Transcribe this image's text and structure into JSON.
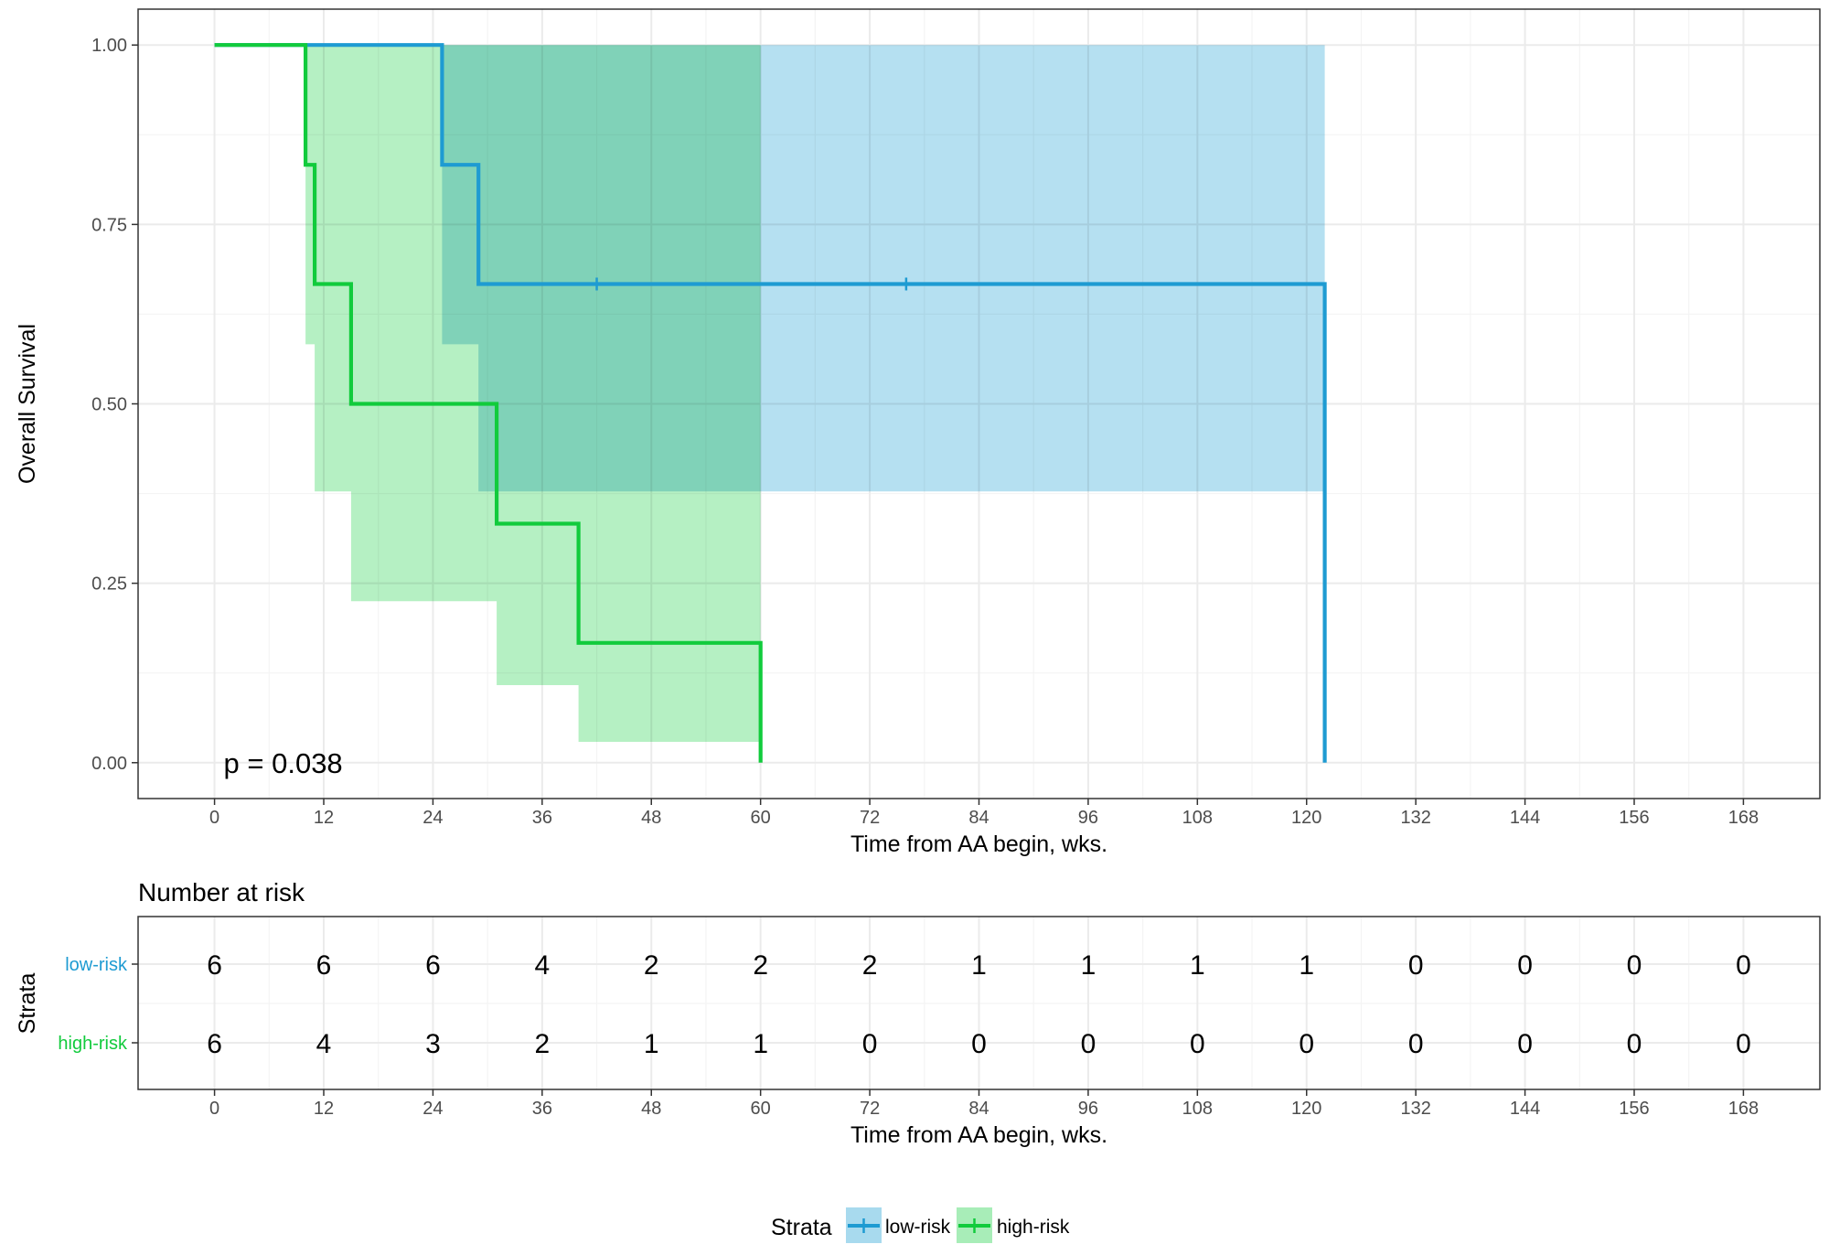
{
  "colors": {
    "low_risk": "#1E9BD2",
    "high_risk": "#11CB3C",
    "low_risk_band": "#A8DAEE",
    "high_risk_band": "#A8EDB8",
    "overlap_band": "#7DD9B5",
    "grid_major": "#EBEBEB",
    "grid_minor": "#F4F4F4",
    "axis_text": "#333333"
  },
  "chart_data": [
    {
      "type": "line",
      "subtype": "kaplan-meier",
      "ylabel": "Overall Survival",
      "xlabel": "Time from AA begin, wks.",
      "xlim": [
        -8.4,
        176.4
      ],
      "ylim": [
        -0.05,
        1.05
      ],
      "x_ticks": [
        0,
        12,
        24,
        36,
        48,
        60,
        72,
        84,
        96,
        108,
        120,
        132,
        144,
        156,
        168
      ],
      "x_tick_labels": [
        "0",
        "12",
        "24",
        "36",
        "48",
        "60",
        "72",
        "84",
        "96",
        "108",
        "120",
        "132",
        "144",
        "156",
        "168"
      ],
      "y_ticks": [
        0,
        0.25,
        0.5,
        0.75,
        1.0
      ],
      "y_tick_labels": [
        "0.00",
        "0.25",
        "0.50",
        "0.75",
        "1.00"
      ],
      "grid": true,
      "annotation": "p = 0.038",
      "series": [
        {
          "name": "low-risk",
          "color_key": "low_risk",
          "steps": [
            [
              0,
              1.0
            ],
            [
              25,
              0.833
            ],
            [
              29,
              0.667
            ],
            [
              122,
              0.0
            ]
          ],
          "end": 122,
          "censor_times": [
            42,
            76
          ],
          "ci_steps": [
            [
              0,
              1.0,
              1.0
            ],
            [
              25,
              0.583,
              1.0
            ],
            [
              29,
              0.378,
              1.0
            ],
            [
              122,
              0.378,
              1.0
            ]
          ]
        },
        {
          "name": "high-risk",
          "color_key": "high_risk",
          "steps": [
            [
              0,
              1.0
            ],
            [
              10,
              0.833
            ],
            [
              11,
              0.667
            ],
            [
              15,
              0.5
            ],
            [
              31,
              0.333
            ],
            [
              40,
              0.167
            ],
            [
              60,
              0.0
            ]
          ],
          "end": 60,
          "censor_times": [],
          "ci_steps": [
            [
              0,
              1.0,
              1.0
            ],
            [
              10,
              0.583,
              1.0
            ],
            [
              11,
              0.378,
              1.0
            ],
            [
              15,
              0.225,
              1.0
            ],
            [
              31,
              0.108,
              1.0
            ],
            [
              40,
              0.029,
              1.0
            ],
            [
              60,
              0.029,
              1.0
            ]
          ]
        }
      ]
    },
    {
      "type": "table",
      "title": "Number at risk",
      "ylabel": "Strata",
      "xlabel": "Time from AA begin, wks.",
      "times": [
        0,
        12,
        24,
        36,
        48,
        60,
        72,
        84,
        96,
        108,
        120,
        132,
        144,
        156,
        168
      ],
      "rows": [
        {
          "name": "low-risk",
          "color_key": "low_risk",
          "values": [
            6,
            6,
            6,
            4,
            2,
            2,
            2,
            1,
            1,
            1,
            1,
            0,
            0,
            0,
            0
          ]
        },
        {
          "name": "high-risk",
          "color_key": "high_risk",
          "values": [
            6,
            4,
            3,
            2,
            1,
            1,
            0,
            0,
            0,
            0,
            0,
            0,
            0,
            0,
            0
          ]
        }
      ]
    }
  ],
  "legend": {
    "title": "Strata",
    "placement": "bottom",
    "items": [
      {
        "label": "low-risk",
        "color_key": "low_risk",
        "band_key": "low_risk_band"
      },
      {
        "label": "high-risk",
        "color_key": "high_risk",
        "band_key": "high_risk_band"
      }
    ]
  }
}
